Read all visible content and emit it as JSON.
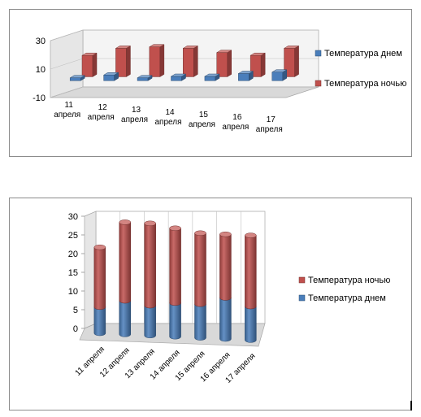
{
  "chart_data": [
    {
      "type": "bar",
      "title": "",
      "xlabel": "",
      "ylabel": "",
      "categories": [
        [
          "11",
          "апреля"
        ],
        [
          "12",
          "апреля"
        ],
        [
          "13",
          "апреля"
        ],
        [
          "14",
          "апреля"
        ],
        [
          "15",
          "апреля"
        ],
        [
          "16",
          "апреля"
        ],
        [
          "17",
          "апреля"
        ]
      ],
      "yticks": [
        "30",
        "10",
        "-10"
      ],
      "ylim": [
        -10,
        30
      ],
      "legend_position": "right",
      "series": [
        {
          "name": "Температура днем",
          "color": "#4a7ebb",
          "values": [
            2,
            4,
            2,
            3,
            3,
            5,
            6
          ]
        },
        {
          "name": "Температура ночью",
          "color": "#c0504d",
          "values": [
            15,
            20,
            21,
            20,
            17,
            15,
            20
          ]
        }
      ]
    },
    {
      "type": "stacked-bar",
      "title": "",
      "xlabel": "",
      "ylabel": "",
      "categories": [
        "11 апреля",
        "12 апреля",
        "13 апреля",
        "14 апреля",
        "15 апреля",
        "16 апреля",
        "17 апреля"
      ],
      "yticks": [
        "0",
        "5",
        "10",
        "15",
        "20",
        "25",
        "30"
      ],
      "ylim": [
        0,
        30
      ],
      "legend_position": "right",
      "legend_order": [
        1,
        0
      ],
      "series": [
        {
          "name": "Температура днем",
          "color": "#4a7ebb",
          "values": [
            7,
            9,
            8,
            9,
            9,
            11,
            9
          ]
        },
        {
          "name": "Температура ночью",
          "color": "#c0504d",
          "values": [
            16,
            21,
            22,
            20,
            19,
            17,
            19
          ]
        }
      ]
    }
  ]
}
